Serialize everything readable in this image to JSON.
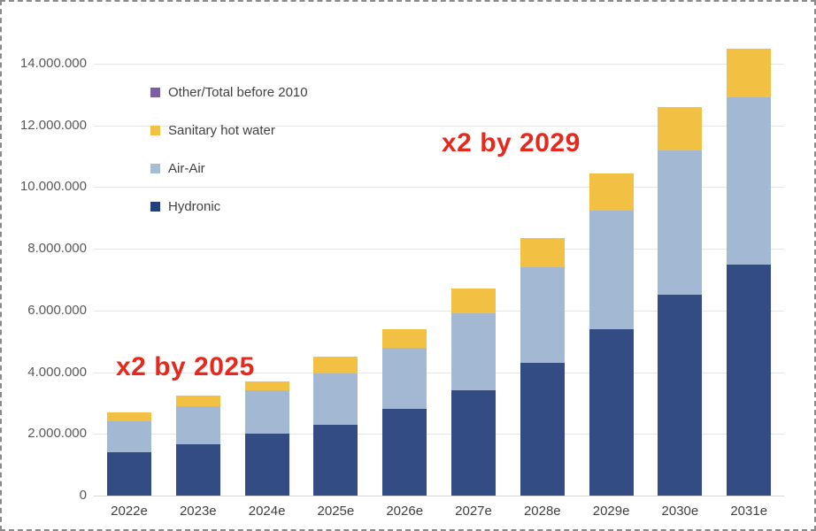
{
  "legend": {
    "items": [
      {
        "label": "Other/Total before 2010",
        "color": "#7B5FA0"
      },
      {
        "label": "Sanitary hot water",
        "color": "#F2C144"
      },
      {
        "label": "Air-Air",
        "color": "#A9BCD6"
      },
      {
        "label": "Hydronic",
        "color": "#25417D"
      }
    ]
  },
  "annotations": [
    {
      "text": "x2 by 2025",
      "color": "#E5291D"
    },
    {
      "text": "x2 by 2029",
      "color": "#E5291D"
    }
  ],
  "chart_data": {
    "type": "bar",
    "stacked": true,
    "title": "",
    "xlabel": "",
    "ylabel": "",
    "categories": [
      "2022e",
      "2023e",
      "2024e",
      "2025e",
      "2026e",
      "2027e",
      "2028e",
      "2029e",
      "2030e",
      "2031e"
    ],
    "series": [
      {
        "name": "Hydronic",
        "color": "#334C84",
        "values": [
          1400000,
          1650000,
          2000000,
          2300000,
          2800000,
          3400000,
          4300000,
          5400000,
          6500000,
          7500000
        ]
      },
      {
        "name": "Air-Air",
        "color": "#A3B8D3",
        "values": [
          1000000,
          1250000,
          1400000,
          1650000,
          2000000,
          2500000,
          3100000,
          3850000,
          4700000,
          5400000
        ]
      },
      {
        "name": "Sanitary hot water",
        "color": "#F2C144",
        "values": [
          300000,
          350000,
          300000,
          550000,
          600000,
          800000,
          950000,
          1200000,
          1400000,
          1600000
        ]
      },
      {
        "name": "Other/Total before 2010",
        "color": "#7B5FA0",
        "values": [
          0,
          0,
          0,
          0,
          0,
          0,
          0,
          0,
          0,
          0
        ]
      }
    ],
    "totals": [
      2700000,
      3250000,
      3700000,
      4500000,
      5400000,
      6700000,
      8350000,
      10450000,
      12600000,
      14500000
    ],
    "ylim": [
      0,
      14000000
    ],
    "grid": true,
    "legend_position": "top-left",
    "yticks": [
      {
        "value": 0,
        "label": "0"
      },
      {
        "value": 2000000,
        "label": "2.000.000"
      },
      {
        "value": 4000000,
        "label": "4.000.000"
      },
      {
        "value": 6000000,
        "label": "6.000.000"
      },
      {
        "value": 8000000,
        "label": "8.000.000"
      },
      {
        "value": 10000000,
        "label": "10.000.000"
      },
      {
        "value": 12000000,
        "label": "12.000.000"
      },
      {
        "value": 14000000,
        "label": "14.000.000"
      }
    ]
  }
}
